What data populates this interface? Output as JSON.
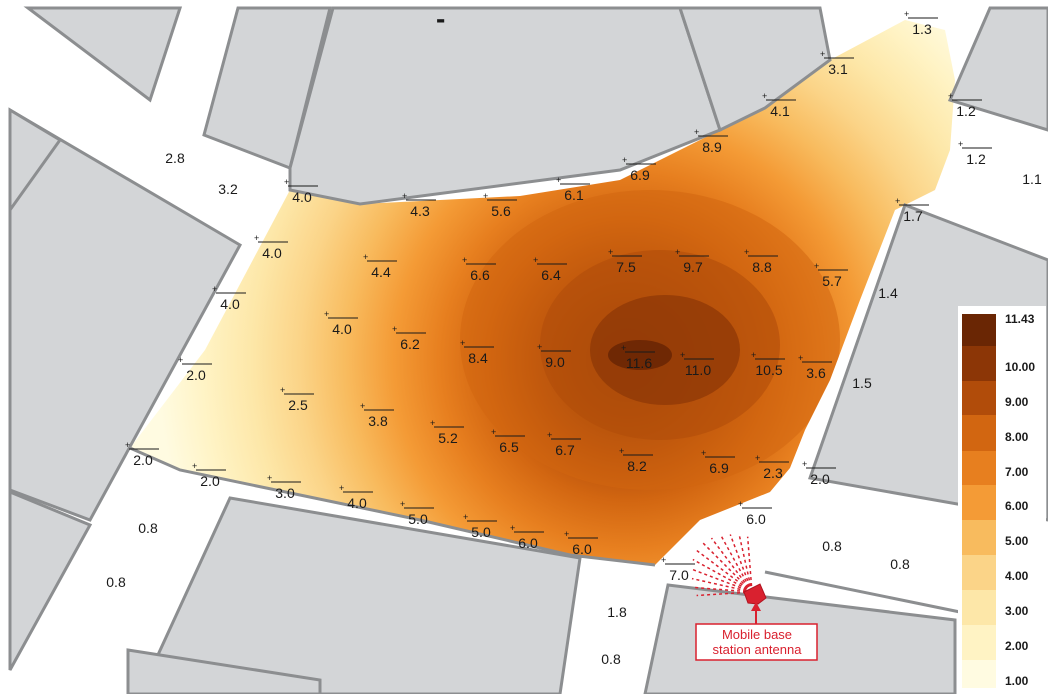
{
  "colors": {
    "building_fill": "#d3d5d7",
    "building_edge": "#8c8e90",
    "antenna": "#d9212f",
    "text": "#1a1a1a"
  },
  "scale": {
    "stops": [
      {
        "value": 1.0,
        "color": "#fffbe1"
      },
      {
        "value": 2.0,
        "color": "#fff3c4"
      },
      {
        "value": 3.0,
        "color": "#fde7a8"
      },
      {
        "value": 4.0,
        "color": "#fbd488"
      },
      {
        "value": 5.0,
        "color": "#f8bb5e"
      },
      {
        "value": 6.0,
        "color": "#f49b36"
      },
      {
        "value": 7.0,
        "color": "#e77f1f"
      },
      {
        "value": 8.0,
        "color": "#d26611"
      },
      {
        "value": 9.0,
        "color": "#b14c0a"
      },
      {
        "value": 10.0,
        "color": "#8c3606"
      },
      {
        "value": 11.43,
        "color": "#6a2604"
      }
    ]
  },
  "legend": {
    "labels": [
      "11.43",
      "10.00",
      "9.00",
      "8.00",
      "7.00",
      "6.00",
      "5.00",
      "4.00",
      "3.00",
      "2.00",
      "1.00"
    ]
  },
  "measured_points": [
    "1.3",
    "3.1",
    "1.2",
    "1.2",
    "4.1",
    "8.9",
    "6.9",
    "6.1",
    "5.6",
    "4.3",
    "4.0",
    "1.7",
    "4.0",
    "4.4",
    "6.6",
    "6.4",
    "7.5",
    "9.7",
    "8.8",
    "5.7",
    "4.0",
    "4.0",
    "6.2",
    "8.4",
    "9.0",
    "11.6",
    "11.0",
    "10.5",
    "3.6",
    "2.0",
    "2.5",
    "3.8",
    "5.2",
    "6.5",
    "6.7",
    "8.2",
    "6.9",
    "2.3",
    "2.0",
    "2.0",
    "2.0",
    "3.0",
    "4.0",
    "5.0",
    "5.0",
    "6.0",
    "6.0",
    "6.0",
    "7.0"
  ],
  "plain_values": [
    "2.8",
    "3.2",
    "1.1",
    "1.4",
    "1.5",
    "0.8",
    "0.8",
    "0.8",
    "0.8",
    "1.8",
    "0.8"
  ],
  "antenna_label": {
    "line1": "Mobile base",
    "line2": "station antenna"
  },
  "corner_mark": "-"
}
